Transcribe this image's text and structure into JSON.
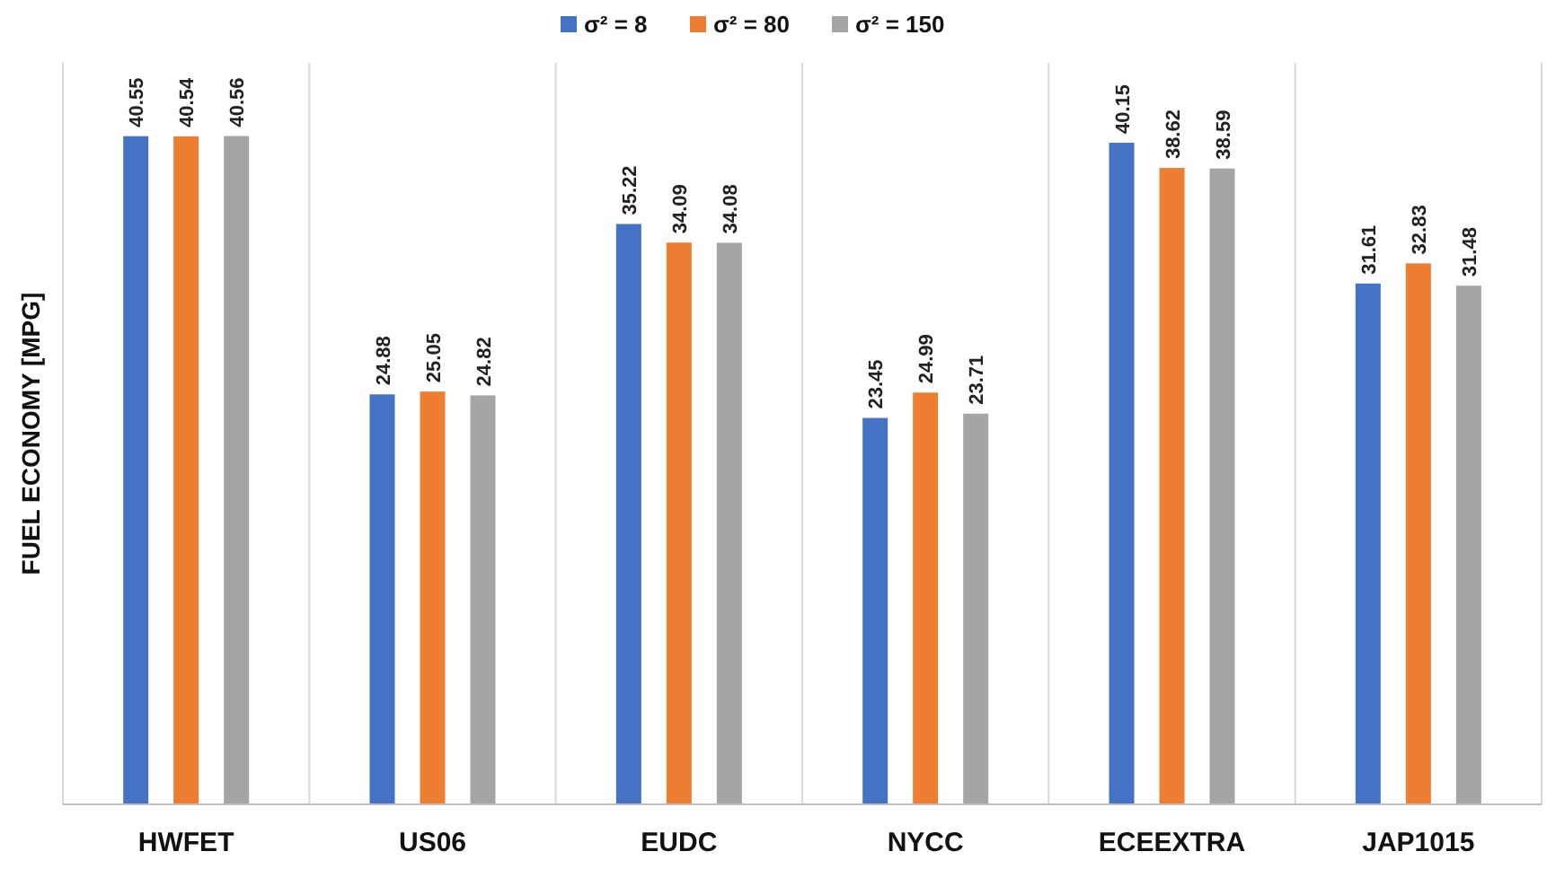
{
  "chart_data": {
    "type": "bar",
    "ylabel": "FUEL ECONOMY [MPG]",
    "categories": [
      "HWFET",
      "US06",
      "EUDC",
      "NYCC",
      "ECEEXTRA",
      "JAP1015"
    ],
    "series": [
      {
        "name": "σ² = 8",
        "color": "#4472c4",
        "values": [
          40.55,
          24.88,
          35.22,
          23.45,
          40.15,
          31.61
        ]
      },
      {
        "name": "σ² = 80",
        "color": "#ed7d31",
        "values": [
          40.54,
          25.05,
          34.09,
          24.99,
          38.62,
          32.83
        ]
      },
      {
        "name": "σ² = 150",
        "color": "#a5a5a5",
        "values": [
          40.56,
          24.82,
          34.08,
          23.71,
          38.59,
          31.48
        ]
      }
    ],
    "ylim": [
      0,
      45
    ],
    "tick_labels": "x",
    "grid": "x",
    "legend": "top",
    "data_labels": true
  }
}
